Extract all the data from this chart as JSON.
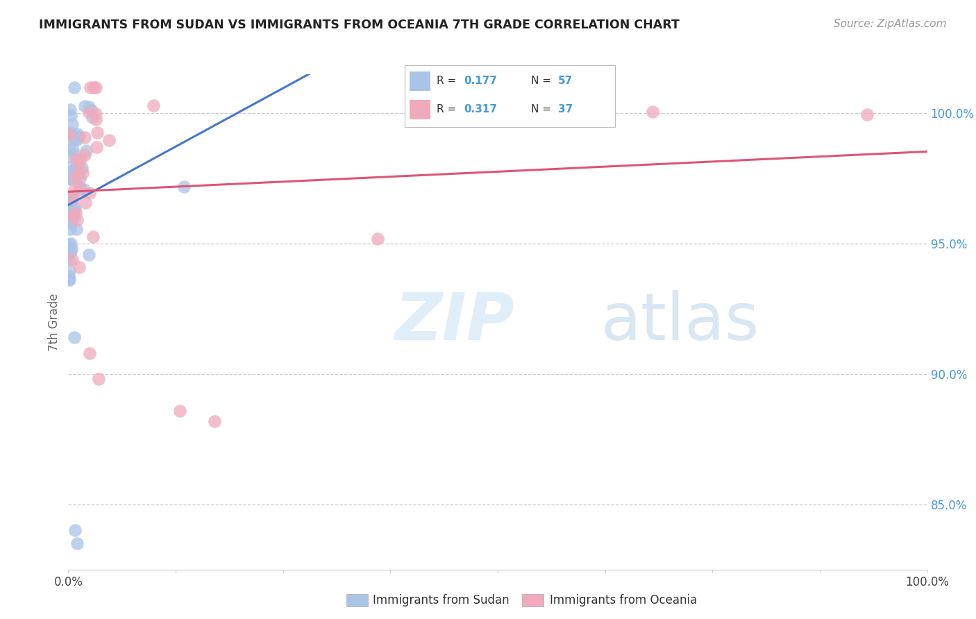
{
  "title": "IMMIGRANTS FROM SUDAN VS IMMIGRANTS FROM OCEANIA 7TH GRADE CORRELATION CHART",
  "source": "Source: ZipAtlas.com",
  "ylabel": "7th Grade",
  "legend_r_sudan": "0.177",
  "legend_n_sudan": "57",
  "legend_r_oceania": "0.317",
  "legend_n_oceania": "37",
  "sudan_color": "#aac4e8",
  "oceania_color": "#f0aabb",
  "sudan_line_color": "#4477cc",
  "oceania_line_color": "#dd5577",
  "xlim": [
    0.0,
    1.0
  ],
  "ylim": [
    0.825,
    0.103
  ],
  "background_color": "#ffffff",
  "watermark_zip": "ZIP",
  "watermark_atlas": "atlas",
  "grid_color": "#cccccc",
  "right_tick_color": "#4499dd",
  "title_color": "#222222",
  "source_color": "#999999"
}
